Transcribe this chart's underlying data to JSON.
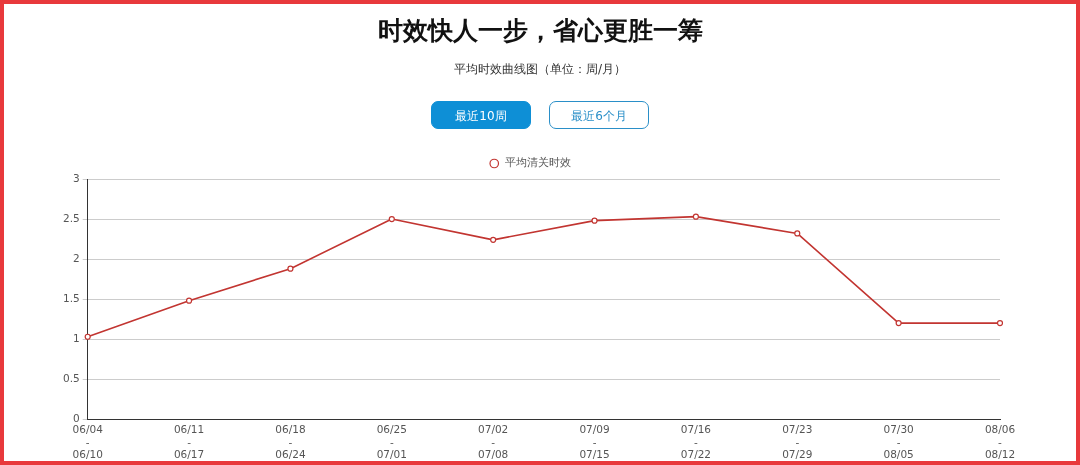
{
  "chart_data": {
    "type": "line",
    "title": "时效快人一步，省心更胜一筹",
    "subtitle": "平均时效曲线图（单位：周/月）",
    "annotations": [
      "最近10周",
      "最近6个月"
    ],
    "categories": [
      "06/04\n-\n06/10",
      "06/11\n-\n06/17",
      "06/18\n-\n06/24",
      "06/25\n-\n07/01",
      "07/02\n-\n07/08",
      "07/09\n-\n07/15",
      "07/16\n-\n07/22",
      "07/23\n-\n07/29",
      "07/30\n-\n08/05",
      "08/06\n-\n08/12"
    ],
    "series": [
      {
        "name": "平均清关时效",
        "color": "#c23531",
        "values": [
          1.03,
          1.48,
          1.88,
          2.5,
          2.24,
          2.48,
          2.53,
          2.32,
          1.2,
          1.2
        ]
      }
    ],
    "ylim": [
      0,
      3
    ],
    "yticks": [
      0,
      0.5,
      1,
      1.5,
      2,
      2.5,
      3
    ],
    "grid": "y",
    "legend": "top",
    "marker": "circle",
    "line_style": "solid"
  }
}
